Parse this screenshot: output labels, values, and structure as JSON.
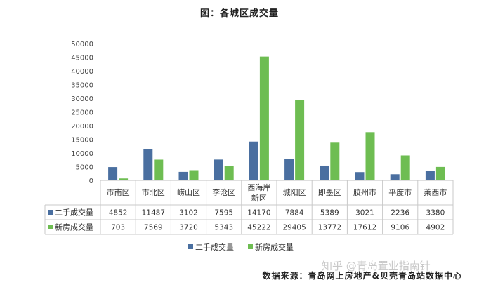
{
  "title": "图：各城区成交量",
  "source": "数据来源：青岛网上房地产&贝壳青岛站数据中心",
  "watermark": "知乎 @青岛置业指南针",
  "colors": {
    "series1": "#4a6fa0",
    "series2": "#6ebd52"
  },
  "chart_data": {
    "type": "bar",
    "categories": [
      "市南区",
      "市北区",
      "崂山区",
      "李沧区",
      "西海岸新区",
      "城阳区",
      "即墨区",
      "胶州市",
      "平度市",
      "莱西市"
    ],
    "category_lines": [
      [
        "市南区"
      ],
      [
        "市北区"
      ],
      [
        "崂山区"
      ],
      [
        "李沧区"
      ],
      [
        "西海岸",
        "新区"
      ],
      [
        "城阳区"
      ],
      [
        "即墨区"
      ],
      [
        "胶州市"
      ],
      [
        "平度市"
      ],
      [
        "莱西市"
      ]
    ],
    "series": [
      {
        "name": "二手成交量",
        "values": [
          4852,
          11487,
          3102,
          7595,
          14170,
          7884,
          5389,
          3021,
          2236,
          3380
        ]
      },
      {
        "name": "新房成交量",
        "values": [
          703,
          7569,
          3720,
          5343,
          45222,
          29405,
          13772,
          17612,
          9106,
          4902
        ]
      }
    ],
    "ylim": [
      0,
      50000
    ],
    "yticks": [
      0,
      5000,
      10000,
      15000,
      20000,
      25000,
      30000,
      35000,
      40000,
      45000,
      50000
    ],
    "grid": false,
    "legend": "bottom",
    "data_table": true
  }
}
